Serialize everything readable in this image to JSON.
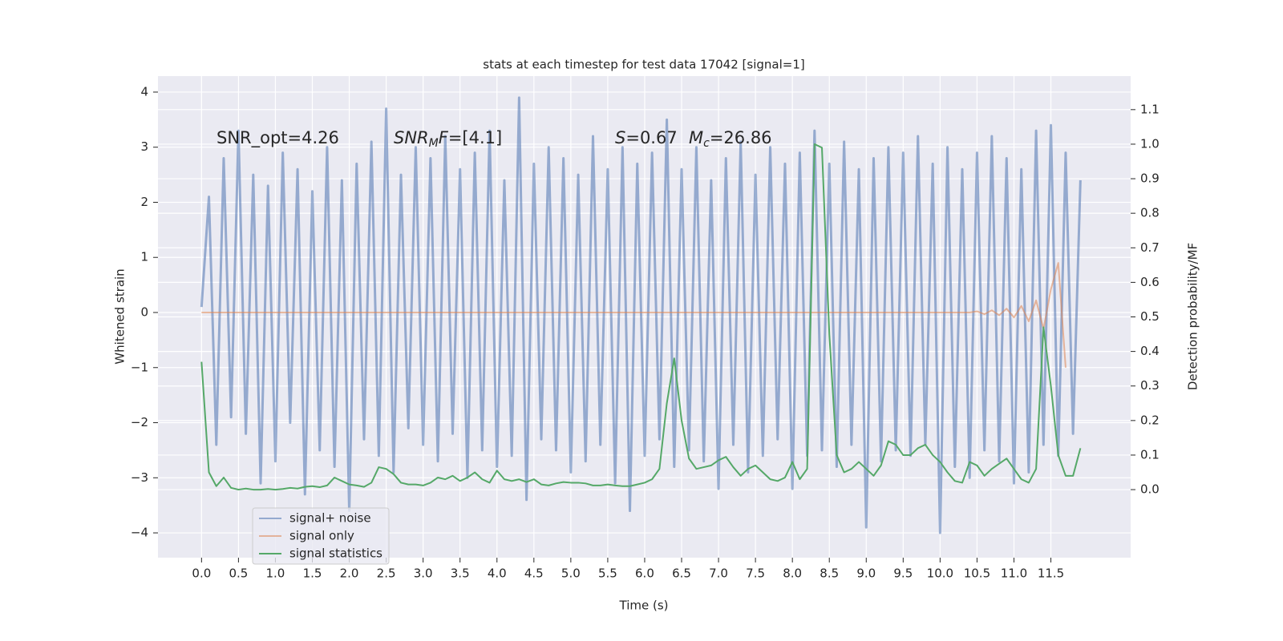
{
  "chart_data": {
    "type": "line",
    "title": "stats at each timestep for test data 17042 [signal=1]",
    "x_label": "Time (s)",
    "y_label": "Whitened strain",
    "y2_label": "Detection probability/MF",
    "annotations": [
      {
        "parts": [
          {
            "text": "SNR_opt=4.26"
          }
        ]
      },
      {
        "parts": [
          {
            "text": "SNR",
            "style": "italic"
          },
          {
            "text": "M",
            "style": "italic-sub"
          },
          {
            "text": "F",
            "style": "italic"
          },
          {
            "text": "=[4.1]"
          }
        ]
      },
      {
        "parts": [
          {
            "text": "S",
            "style": "italic"
          },
          {
            "text": "=0.67"
          }
        ]
      },
      {
        "parts": [
          {
            "text": "M",
            "style": "italic"
          },
          {
            "text": "c",
            "style": "italic-sub"
          },
          {
            "text": "=26.86"
          }
        ]
      }
    ],
    "x": [
      0,
      0.1,
      0.2,
      0.3,
      0.4,
      0.5,
      0.6,
      0.7,
      0.8,
      0.9,
      1,
      1.1,
      1.2,
      1.3,
      1.4,
      1.5,
      1.6,
      1.7,
      1.8,
      1.9,
      2,
      2.1,
      2.2,
      2.3,
      2.4,
      2.5,
      2.6,
      2.7,
      2.8,
      2.9,
      3,
      3.1,
      3.2,
      3.3,
      3.4,
      3.5,
      3.6,
      3.7,
      3.8,
      3.9,
      4,
      4.1,
      4.2,
      4.3,
      4.4,
      4.5,
      4.6,
      4.7,
      4.8,
      4.9,
      5,
      5.1,
      5.2,
      5.3,
      5.4,
      5.5,
      5.6,
      5.7,
      5.8,
      5.9,
      6,
      6.1,
      6.2,
      6.3,
      6.4,
      6.5,
      6.6,
      6.7,
      6.8,
      6.9,
      7,
      7.1,
      7.2,
      7.3,
      7.4,
      7.5,
      7.6,
      7.7,
      7.8,
      7.9,
      8,
      8.1,
      8.2,
      8.3,
      8.4,
      8.5,
      8.6,
      8.7,
      8.8,
      8.9,
      9,
      9.1,
      9.2,
      9.3,
      9.4,
      9.5,
      9.6,
      9.7,
      9.8,
      9.9,
      10,
      10.1,
      10.2,
      10.3,
      10.4,
      10.5,
      10.6,
      10.7,
      10.8,
      10.9,
      11,
      11.1,
      11.2,
      11.3,
      11.4,
      11.5,
      11.6,
      11.7,
      11.8,
      11.9
    ],
    "series": [
      {
        "name": "signal+ noise",
        "color": "#4c72b0",
        "values": [
          0.1,
          2.1,
          -2.4,
          2.8,
          -1.9,
          3.3,
          -2.2,
          2.5,
          -3.1,
          2.3,
          -2.7,
          2.9,
          -2.0,
          2.6,
          -3.3,
          2.2,
          -2.5,
          3.0,
          -2.8,
          2.4,
          -3.6,
          2.7,
          -2.3,
          3.1,
          -2.6,
          3.7,
          -2.9,
          2.5,
          -2.1,
          3.0,
          -2.4,
          2.8,
          -2.7,
          3.2,
          -2.2,
          2.6,
          -3.0,
          2.9,
          -2.5,
          3.3,
          -2.8,
          2.4,
          -2.6,
          3.9,
          -3.4,
          2.7,
          -2.3,
          3.0,
          -2.5,
          2.8,
          -2.9,
          2.5,
          -2.7,
          3.2,
          -2.4,
          2.6,
          -3.1,
          3.0,
          -3.6,
          2.7,
          -2.6,
          2.9,
          -2.3,
          3.5,
          -2.8,
          2.6,
          -2.5,
          3.0,
          -2.7,
          2.4,
          -3.2,
          2.8,
          -2.4,
          3.1,
          -2.9,
          2.5,
          -2.6,
          3.0,
          -2.3,
          2.7,
          -3.2,
          2.9,
          -2.6,
          3.3,
          -2.5,
          2.7,
          -2.8,
          3.1,
          -2.4,
          2.6,
          -3.9,
          2.8,
          -2.7,
          3.0,
          -2.5,
          2.9,
          -2.6,
          3.2,
          -2.4,
          2.7,
          -4.0,
          3.0,
          -2.8,
          2.6,
          -3.0,
          2.9,
          -2.5,
          3.2,
          -2.7,
          2.8,
          -3.1,
          2.6,
          -2.9,
          3.3,
          -2.4,
          3.4,
          -2.6,
          2.9,
          -2.2,
          2.4
        ]
      },
      {
        "name": "signal only",
        "color": "#dd8452",
        "values": [
          0,
          0,
          0,
          0,
          0,
          0,
          0,
          0,
          0,
          0,
          0,
          0,
          0,
          0,
          0,
          0,
          0,
          0,
          0,
          0,
          0,
          0,
          0,
          0,
          0,
          0,
          0,
          0,
          0,
          0,
          0,
          0,
          0,
          0,
          0,
          0,
          0,
          0,
          0,
          0,
          0,
          0,
          0,
          0,
          0,
          0,
          0,
          0,
          0,
          0,
          0,
          0,
          0,
          0,
          0,
          0,
          0,
          0,
          0,
          0,
          0,
          0,
          0,
          0,
          0,
          0,
          0,
          0,
          0,
          0,
          0,
          0,
          0,
          0,
          0,
          0,
          0,
          0,
          0,
          0,
          0,
          0,
          0,
          0,
          0,
          0,
          0,
          0,
          0,
          0,
          0,
          0,
          0,
          0,
          0,
          0,
          0,
          0,
          0,
          0,
          0,
          0,
          0,
          0,
          0,
          0.02,
          -0.03,
          0.04,
          -0.05,
          0.07,
          -0.09,
          0.12,
          -0.16,
          0.22,
          -0.3,
          0.42,
          0.9,
          -1.0,
          null,
          null
        ]
      },
      {
        "name": "signal statistics",
        "color": "#55a868",
        "axis": "y2",
        "values": [
          0.37,
          0.05,
          0.01,
          0.035,
          0.005,
          0.0,
          0.003,
          0.0,
          0.0,
          0.002,
          0.0,
          0.002,
          0.005,
          0.003,
          0.008,
          0.01,
          0.007,
          0.012,
          0.035,
          0.025,
          0.015,
          0.012,
          0.008,
          0.02,
          0.065,
          0.06,
          0.045,
          0.02,
          0.015,
          0.015,
          0.012,
          0.02,
          0.035,
          0.03,
          0.04,
          0.025,
          0.035,
          0.05,
          0.03,
          0.02,
          0.055,
          0.03,
          0.025,
          0.03,
          0.022,
          0.03,
          0.015,
          0.012,
          0.018,
          0.022,
          0.02,
          0.02,
          0.018,
          0.012,
          0.012,
          0.015,
          0.012,
          0.01,
          0.01,
          0.015,
          0.02,
          0.03,
          0.06,
          0.25,
          0.38,
          0.2,
          0.09,
          0.06,
          0.065,
          0.07,
          0.085,
          0.095,
          0.065,
          0.04,
          0.06,
          0.07,
          0.05,
          0.03,
          0.025,
          0.035,
          0.08,
          0.03,
          0.06,
          1.0,
          0.99,
          0.45,
          0.1,
          0.05,
          0.06,
          0.08,
          0.06,
          0.04,
          0.07,
          0.14,
          0.13,
          0.1,
          0.1,
          0.12,
          0.13,
          0.1,
          0.08,
          0.05,
          0.025,
          0.02,
          0.08,
          0.07,
          0.04,
          0.06,
          0.075,
          0.09,
          0.06,
          0.03,
          0.02,
          0.06,
          0.47,
          0.3,
          0.1,
          0.04,
          0.04,
          0.12
        ]
      }
    ],
    "xlim": [
      -0.59,
      12.58
    ],
    "ylim": [
      -4.45,
      4.29
    ],
    "y2lim": [
      -0.197,
      1.197
    ],
    "xticks": [
      {
        "value": 0,
        "label": "0.0"
      },
      0.5,
      {
        "value": 1,
        "label": "1.0"
      },
      1.5,
      {
        "value": 2,
        "label": "2.0"
      },
      2.5,
      {
        "value": 3,
        "label": "3.0"
      },
      3.5,
      {
        "value": 4,
        "label": "4.0"
      },
      4.5,
      {
        "value": 5,
        "label": "5.0"
      },
      5.5,
      {
        "value": 6,
        "label": "6.0"
      },
      6.5,
      {
        "value": 7,
        "label": "7.0"
      },
      7.5,
      {
        "value": 8,
        "label": "8.0"
      },
      8.5,
      {
        "value": 9,
        "label": "9.0"
      },
      9.5,
      {
        "value": 10,
        "label": "10.0"
      },
      10.5,
      {
        "value": 11,
        "label": "11.0"
      },
      11.5
    ],
    "yticks": [
      {
        "value": -4,
        "label": "−4"
      },
      {
        "value": -3,
        "label": "−3"
      },
      {
        "value": -2,
        "label": "−2"
      },
      {
        "value": -1,
        "label": "−1"
      },
      0,
      1,
      2,
      3,
      4
    ],
    "y2ticks": [
      {
        "value": 0,
        "label": "0.0"
      },
      0.1,
      0.2,
      0.3,
      0.4,
      0.5,
      0.6,
      0.7,
      0.8,
      0.9,
      {
        "value": 1,
        "label": "1.0"
      },
      1.1
    ],
    "grid": true,
    "legend": "lower left"
  }
}
